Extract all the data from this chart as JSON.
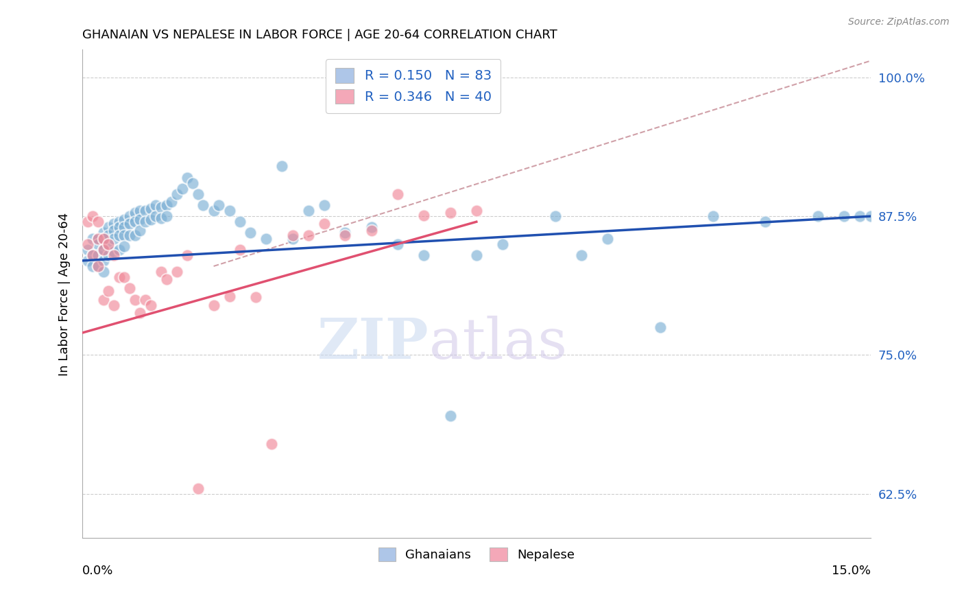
{
  "title": "GHANAIAN VS NEPALESE IN LABOR FORCE | AGE 20-64 CORRELATION CHART",
  "source": "Source: ZipAtlas.com",
  "ylabel": "In Labor Force | Age 20-64",
  "ytick_values": [
    0.625,
    0.75,
    0.875,
    1.0
  ],
  "xmin": 0.0,
  "xmax": 0.15,
  "ymin": 0.585,
  "ymax": 1.025,
  "legend_color1": "#aec6e8",
  "legend_color2": "#f4a8b8",
  "blue_dot_color": "#7bafd4",
  "pink_dot_color": "#f08898",
  "line_blue": "#2050b0",
  "line_pink": "#e05070",
  "line_ref_color": "#d0a0a8",
  "watermark_text": "ZIPatlas",
  "blue_scatter_x": [
    0.001,
    0.001,
    0.002,
    0.002,
    0.002,
    0.003,
    0.003,
    0.003,
    0.003,
    0.004,
    0.004,
    0.004,
    0.004,
    0.004,
    0.005,
    0.005,
    0.005,
    0.005,
    0.006,
    0.006,
    0.006,
    0.006,
    0.007,
    0.007,
    0.007,
    0.007,
    0.008,
    0.008,
    0.008,
    0.008,
    0.009,
    0.009,
    0.009,
    0.01,
    0.01,
    0.01,
    0.011,
    0.011,
    0.011,
    0.012,
    0.012,
    0.013,
    0.013,
    0.014,
    0.014,
    0.015,
    0.015,
    0.016,
    0.016,
    0.017,
    0.018,
    0.019,
    0.02,
    0.021,
    0.022,
    0.023,
    0.025,
    0.026,
    0.028,
    0.03,
    0.032,
    0.035,
    0.038,
    0.04,
    0.043,
    0.046,
    0.05,
    0.055,
    0.06,
    0.065,
    0.07,
    0.075,
    0.08,
    0.09,
    0.095,
    0.1,
    0.11,
    0.12,
    0.13,
    0.14,
    0.145,
    0.148,
    0.15
  ],
  "blue_scatter_y": [
    0.845,
    0.835,
    0.855,
    0.84,
    0.83,
    0.855,
    0.85,
    0.84,
    0.83,
    0.86,
    0.855,
    0.845,
    0.835,
    0.825,
    0.865,
    0.858,
    0.85,
    0.84,
    0.868,
    0.862,
    0.855,
    0.843,
    0.87,
    0.865,
    0.858,
    0.845,
    0.872,
    0.865,
    0.858,
    0.848,
    0.875,
    0.868,
    0.858,
    0.878,
    0.87,
    0.858,
    0.88,
    0.872,
    0.862,
    0.88,
    0.87,
    0.882,
    0.872,
    0.885,
    0.875,
    0.883,
    0.873,
    0.885,
    0.875,
    0.888,
    0.895,
    0.9,
    0.91,
    0.905,
    0.895,
    0.885,
    0.88,
    0.885,
    0.88,
    0.87,
    0.86,
    0.855,
    0.92,
    0.855,
    0.88,
    0.885,
    0.86,
    0.865,
    0.85,
    0.84,
    0.695,
    0.84,
    0.85,
    0.875,
    0.84,
    0.855,
    0.775,
    0.875,
    0.87,
    0.875,
    0.875,
    0.875,
    0.875
  ],
  "pink_scatter_x": [
    0.001,
    0.001,
    0.002,
    0.002,
    0.003,
    0.003,
    0.003,
    0.004,
    0.004,
    0.004,
    0.005,
    0.005,
    0.006,
    0.006,
    0.007,
    0.008,
    0.009,
    0.01,
    0.011,
    0.012,
    0.013,
    0.015,
    0.016,
    0.018,
    0.02,
    0.022,
    0.025,
    0.028,
    0.03,
    0.033,
    0.036,
    0.04,
    0.043,
    0.046,
    0.05,
    0.055,
    0.06,
    0.065,
    0.07,
    0.075
  ],
  "pink_scatter_y": [
    0.87,
    0.85,
    0.875,
    0.84,
    0.87,
    0.855,
    0.83,
    0.855,
    0.845,
    0.8,
    0.85,
    0.808,
    0.84,
    0.795,
    0.82,
    0.82,
    0.81,
    0.8,
    0.788,
    0.8,
    0.795,
    0.825,
    0.818,
    0.825,
    0.84,
    0.63,
    0.795,
    0.803,
    0.845,
    0.802,
    0.67,
    0.858,
    0.858,
    0.868,
    0.858,
    0.862,
    0.895,
    0.876,
    0.878,
    0.88
  ],
  "blue_line_x0": 0.0,
  "blue_line_x1": 0.15,
  "blue_line_y0": 0.835,
  "blue_line_y1": 0.875,
  "pink_line_x0": 0.0,
  "pink_line_x1": 0.075,
  "pink_line_y0": 0.77,
  "pink_line_y1": 0.87,
  "ref_line_x0": 0.025,
  "ref_line_x1": 0.15,
  "ref_line_y0": 0.83,
  "ref_line_y1": 1.015
}
